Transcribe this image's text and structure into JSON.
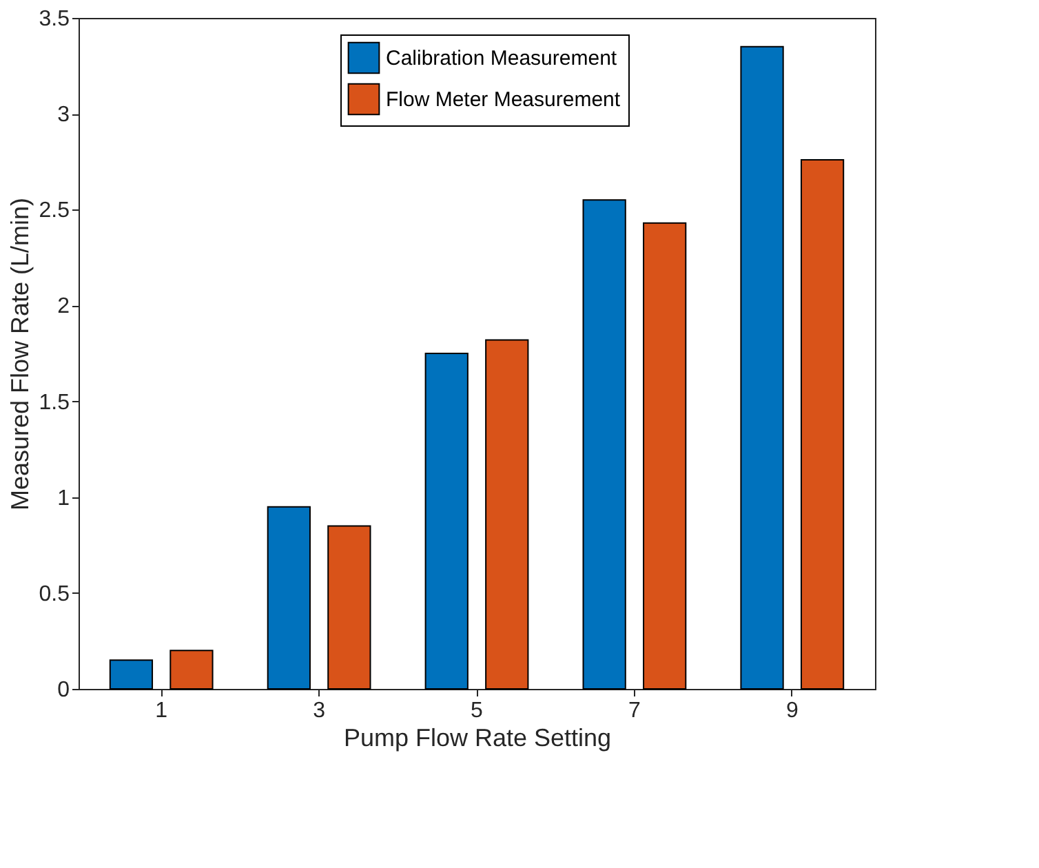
{
  "chart_data": {
    "type": "bar",
    "xlabel": "Pump Flow Rate Setting",
    "ylabel": "Measured Flow Rate (L/min)",
    "categories": [
      "1",
      "3",
      "5",
      "7",
      "9"
    ],
    "series": [
      {
        "name": "Calibration Measurement",
        "color": "#0072bd",
        "values": [
          0.15,
          0.95,
          1.75,
          2.55,
          3.35
        ]
      },
      {
        "name": "Flow Meter Measurement",
        "color": "#d95319",
        "values": [
          0.2,
          0.85,
          1.82,
          2.43,
          2.76
        ]
      }
    ],
    "ylim": [
      0,
      3.5
    ],
    "yticks": [
      0,
      0.5,
      1,
      1.5,
      2,
      2.5,
      3,
      3.5
    ],
    "grid": false,
    "legend": "top"
  }
}
